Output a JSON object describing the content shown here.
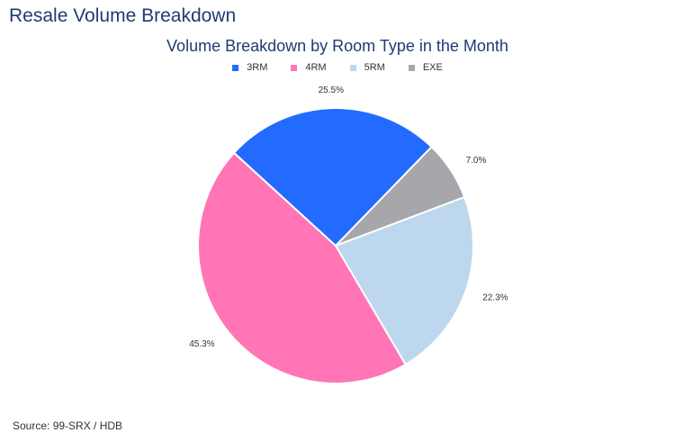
{
  "page": {
    "title": "Resale Volume Breakdown",
    "source": "Source: 99-SRX / HDB"
  },
  "chart_data": {
    "type": "pie",
    "title": "Volume Breakdown by Room Type in the Month",
    "legend_position": "top",
    "categories": [
      "3RM",
      "4RM",
      "5RM",
      "EXE"
    ],
    "values": [
      25.5,
      45.3,
      22.3,
      7.0
    ],
    "labels": [
      "25.5%",
      "45.3%",
      "22.3%",
      "7.0%"
    ],
    "colors": [
      "#236bff",
      "#ff75b6",
      "#bdd7ee",
      "#a6a6ab"
    ]
  }
}
